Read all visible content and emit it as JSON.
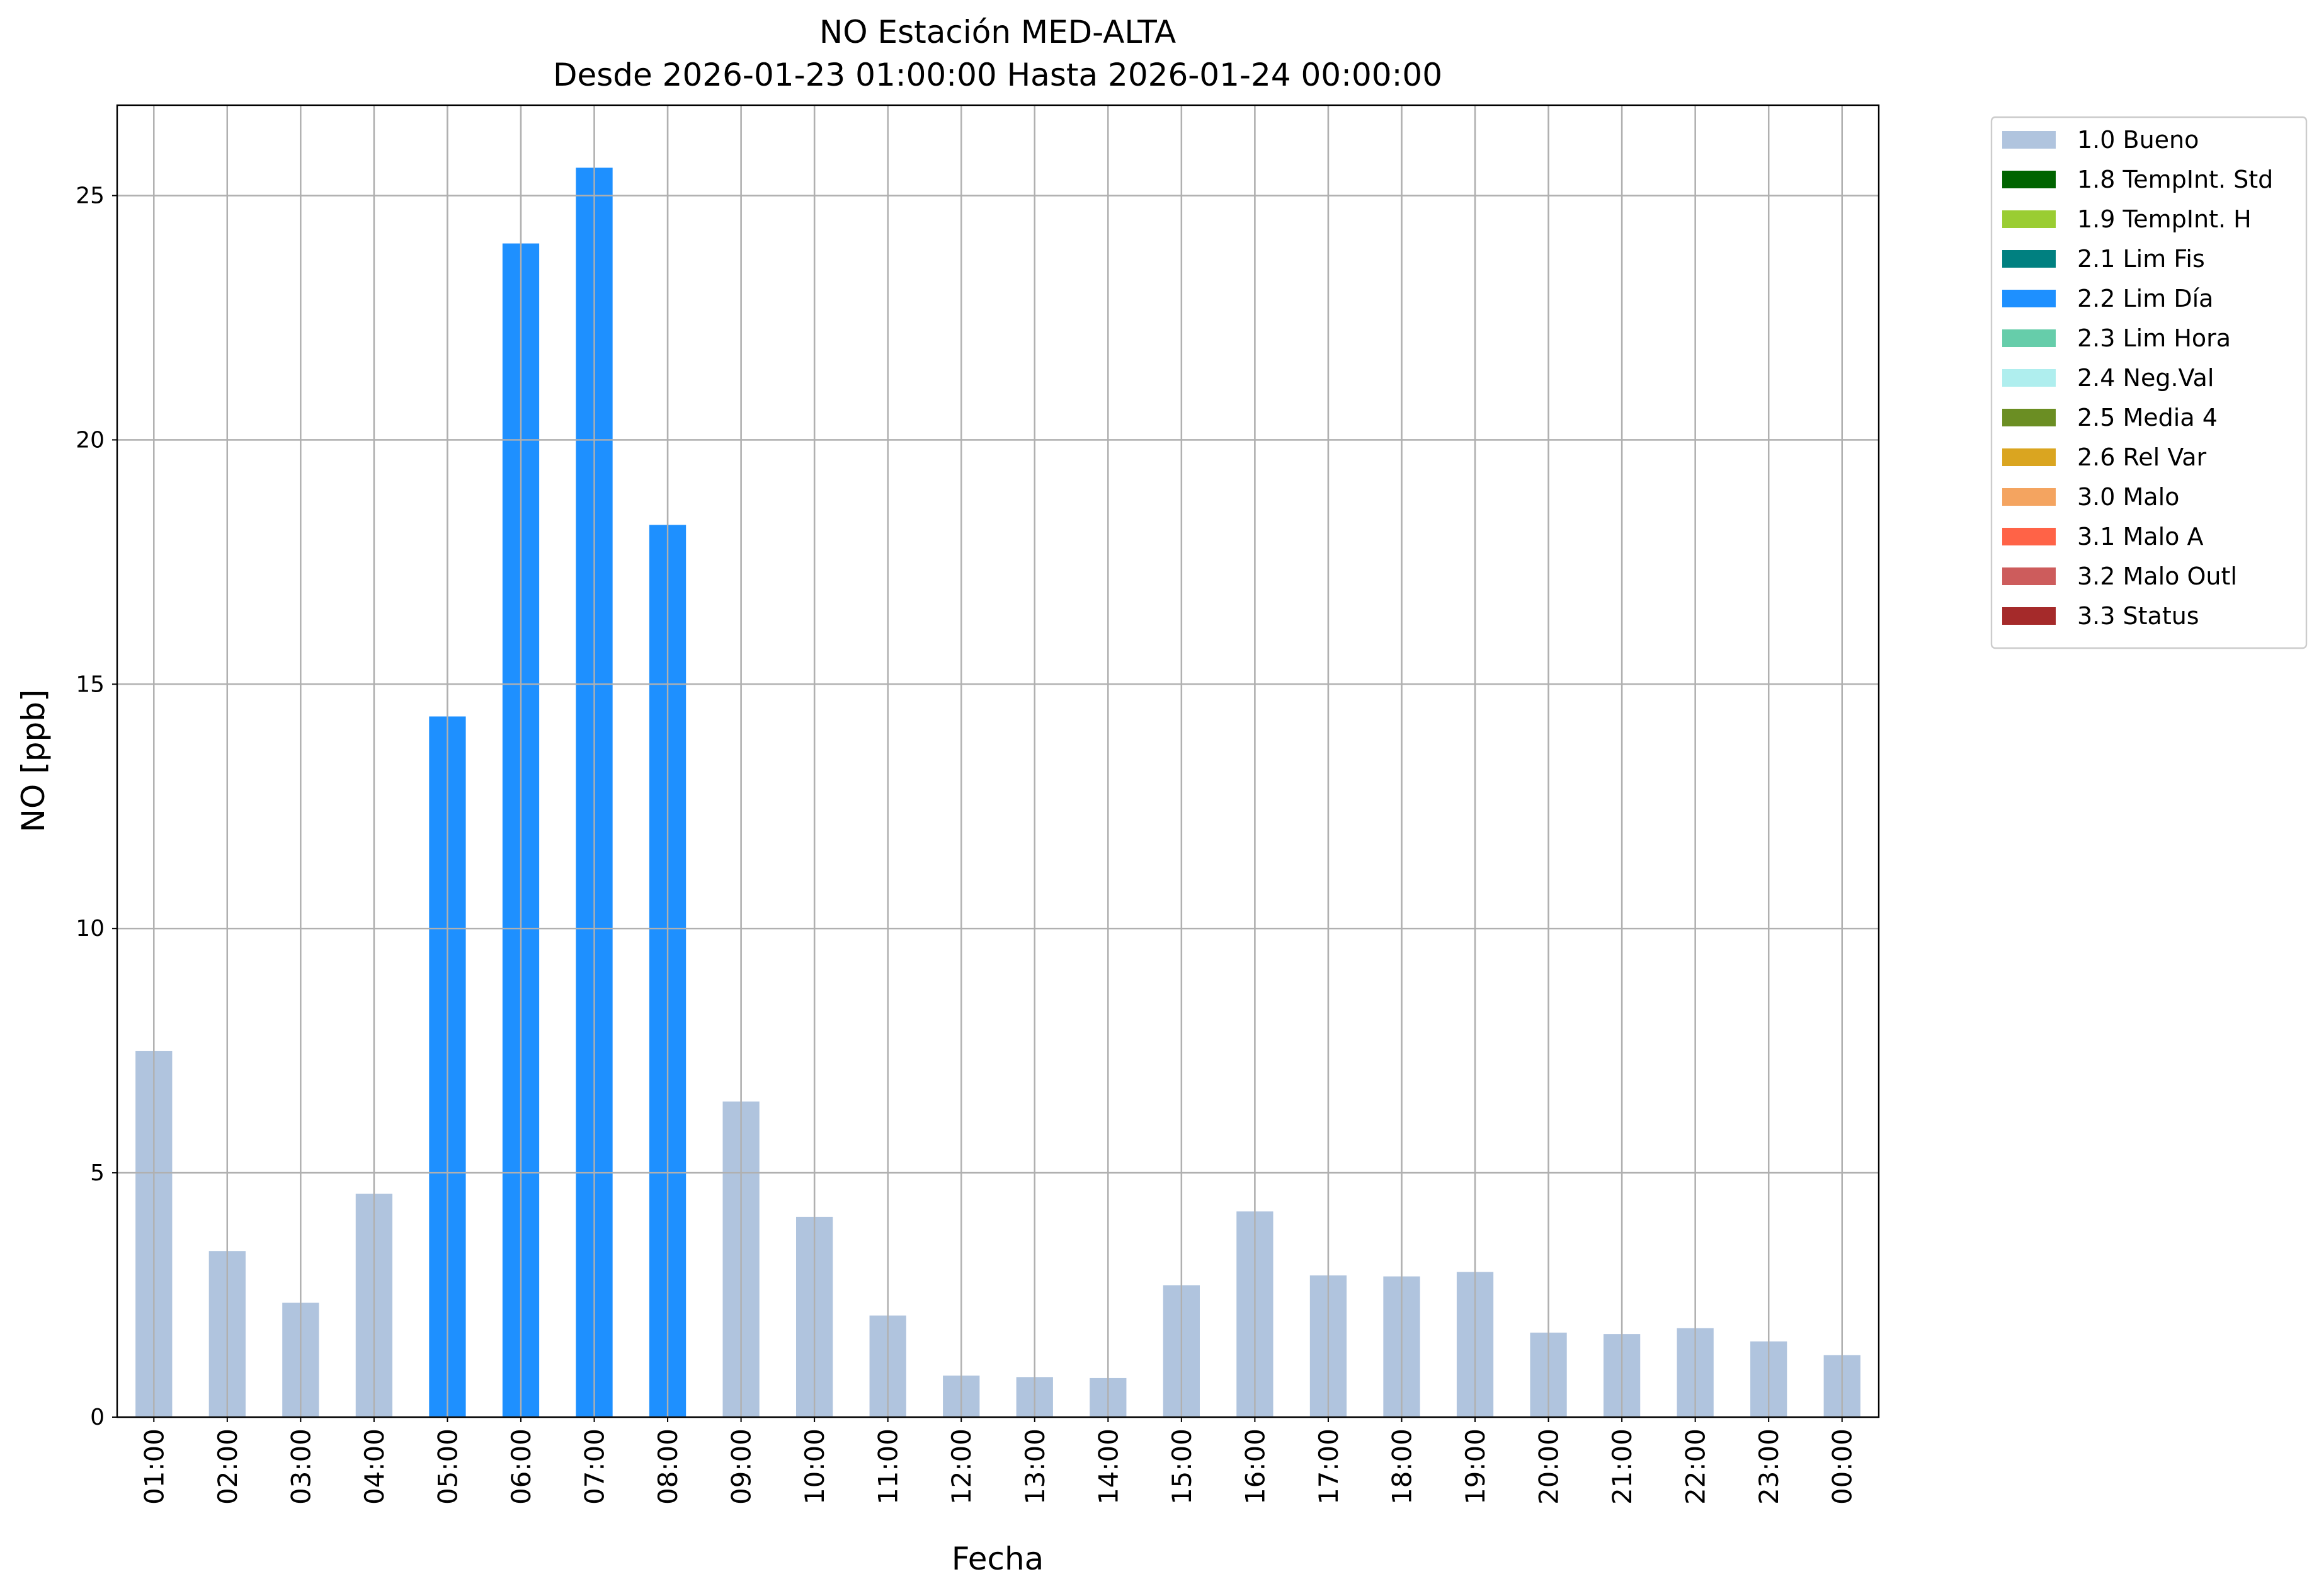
{
  "chart_data": {
    "type": "bar",
    "stacked": true,
    "title": "NO Estación MED-ALTA",
    "subtitle": "Desde 2026-01-23 01:00:00 Hasta 2026-01-24 00:00:00",
    "x_label": "Fecha",
    "y_label": "NO [ppb]",
    "categories": [
      "01:00",
      "02:00",
      "03:00",
      "04:00",
      "05:00",
      "06:00",
      "07:00",
      "08:00",
      "09:00",
      "10:00",
      "11:00",
      "12:00",
      "13:00",
      "14:00",
      "15:00",
      "16:00",
      "17:00",
      "18:00",
      "19:00",
      "20:00",
      "21:00",
      "22:00",
      "23:00",
      "00:00"
    ],
    "series": [
      {
        "name": "1.0 Bueno",
        "color": "#b0c4de",
        "values": [
          7.49,
          3.4,
          2.34,
          4.57,
          null,
          null,
          null,
          null,
          6.46,
          4.1,
          2.08,
          0.85,
          0.82,
          0.8,
          2.7,
          4.21,
          2.9,
          2.88,
          2.97,
          1.73,
          1.7,
          1.82,
          1.55,
          1.27
        ]
      },
      {
        "name": "1.8 TempInt. Std",
        "color": "#006400",
        "values": [
          null,
          null,
          null,
          null,
          null,
          null,
          null,
          null,
          null,
          null,
          null,
          null,
          null,
          null,
          null,
          null,
          null,
          null,
          null,
          null,
          null,
          null,
          null,
          null
        ]
      },
      {
        "name": "1.9 TempInt. H",
        "color": "#9acd32",
        "values": [
          null,
          null,
          null,
          null,
          null,
          null,
          null,
          null,
          null,
          null,
          null,
          null,
          null,
          null,
          null,
          null,
          null,
          null,
          null,
          null,
          null,
          null,
          null,
          null
        ]
      },
      {
        "name": "2.1 Lim Fis",
        "color": "#008080",
        "values": [
          null,
          null,
          null,
          null,
          null,
          null,
          null,
          null,
          null,
          null,
          null,
          null,
          null,
          null,
          null,
          null,
          null,
          null,
          null,
          null,
          null,
          null,
          null,
          null
        ]
      },
      {
        "name": "2.2 Lim Día",
        "color": "#1e90ff",
        "values": [
          null,
          null,
          null,
          null,
          14.34,
          24.02,
          25.57,
          18.26,
          null,
          null,
          null,
          null,
          null,
          null,
          null,
          null,
          null,
          null,
          null,
          null,
          null,
          null,
          null,
          null
        ]
      },
      {
        "name": "2.3 Lim Hora",
        "color": "#66cdaa",
        "values": [
          null,
          null,
          null,
          null,
          null,
          null,
          null,
          null,
          null,
          null,
          null,
          null,
          null,
          null,
          null,
          null,
          null,
          null,
          null,
          null,
          null,
          null,
          null,
          null
        ]
      },
      {
        "name": "2.4 Neg.Val",
        "color": "#afeeee",
        "values": [
          null,
          null,
          null,
          null,
          null,
          null,
          null,
          null,
          null,
          null,
          null,
          null,
          null,
          null,
          null,
          null,
          null,
          null,
          null,
          null,
          null,
          null,
          null,
          null
        ]
      },
      {
        "name": "2.5 Media 4",
        "color": "#6b8e23",
        "values": [
          null,
          null,
          null,
          null,
          null,
          null,
          null,
          null,
          null,
          null,
          null,
          null,
          null,
          null,
          null,
          null,
          null,
          null,
          null,
          null,
          null,
          null,
          null,
          null
        ]
      },
      {
        "name": "2.6 Rel Var",
        "color": "#daa520",
        "values": [
          null,
          null,
          null,
          null,
          null,
          null,
          null,
          null,
          null,
          null,
          null,
          null,
          null,
          null,
          null,
          null,
          null,
          null,
          null,
          null,
          null,
          null,
          null,
          null
        ]
      },
      {
        "name": "3.0 Malo",
        "color": "#f4a460",
        "values": [
          null,
          null,
          null,
          null,
          null,
          null,
          null,
          null,
          null,
          null,
          null,
          null,
          null,
          null,
          null,
          null,
          null,
          null,
          null,
          null,
          null,
          null,
          null,
          null
        ]
      },
      {
        "name": "3.1 Malo A",
        "color": "#ff6347",
        "values": [
          null,
          null,
          null,
          null,
          null,
          null,
          null,
          null,
          null,
          null,
          null,
          null,
          null,
          null,
          null,
          null,
          null,
          null,
          null,
          null,
          null,
          null,
          null,
          null
        ]
      },
      {
        "name": "3.2 Malo Outl",
        "color": "#cd5c5c",
        "values": [
          null,
          null,
          null,
          null,
          null,
          null,
          null,
          null,
          null,
          null,
          null,
          null,
          null,
          null,
          null,
          null,
          null,
          null,
          null,
          null,
          null,
          null,
          null,
          null
        ]
      },
      {
        "name": "3.3 Status",
        "color": "#a52a2a",
        "values": [
          null,
          null,
          null,
          null,
          null,
          null,
          null,
          null,
          null,
          null,
          null,
          null,
          null,
          null,
          null,
          null,
          null,
          null,
          null,
          null,
          null,
          null,
          null,
          null
        ]
      }
    ],
    "ylim": [
      0,
      26.85
    ],
    "yticks": [
      0,
      5,
      10,
      15,
      20,
      25
    ],
    "grid": true,
    "legend": "outside-upper-right"
  }
}
